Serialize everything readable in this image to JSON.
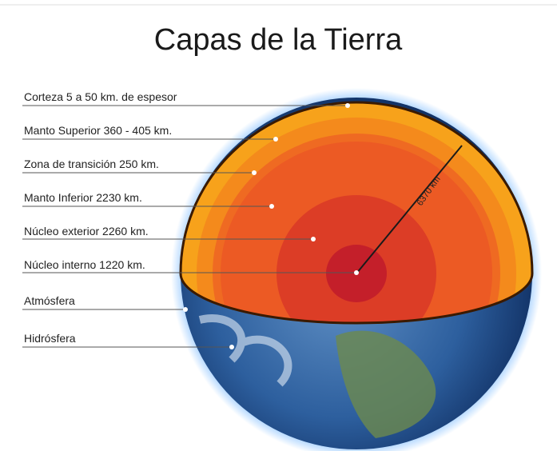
{
  "title": "Capas de la Tierra",
  "labels": [
    "Corteza 5 a 50 km. de espesor",
    "Manto Superior 360 - 405 km.",
    "Zona de transición 250 km.",
    "Manto Inferior 2230 km.",
    "Núcleo exterior 2260 km.",
    "Núcleo interno 1220 km.",
    "Atmósfera",
    "Hidrósfera"
  ],
  "radius_label": "6370 km"
}
